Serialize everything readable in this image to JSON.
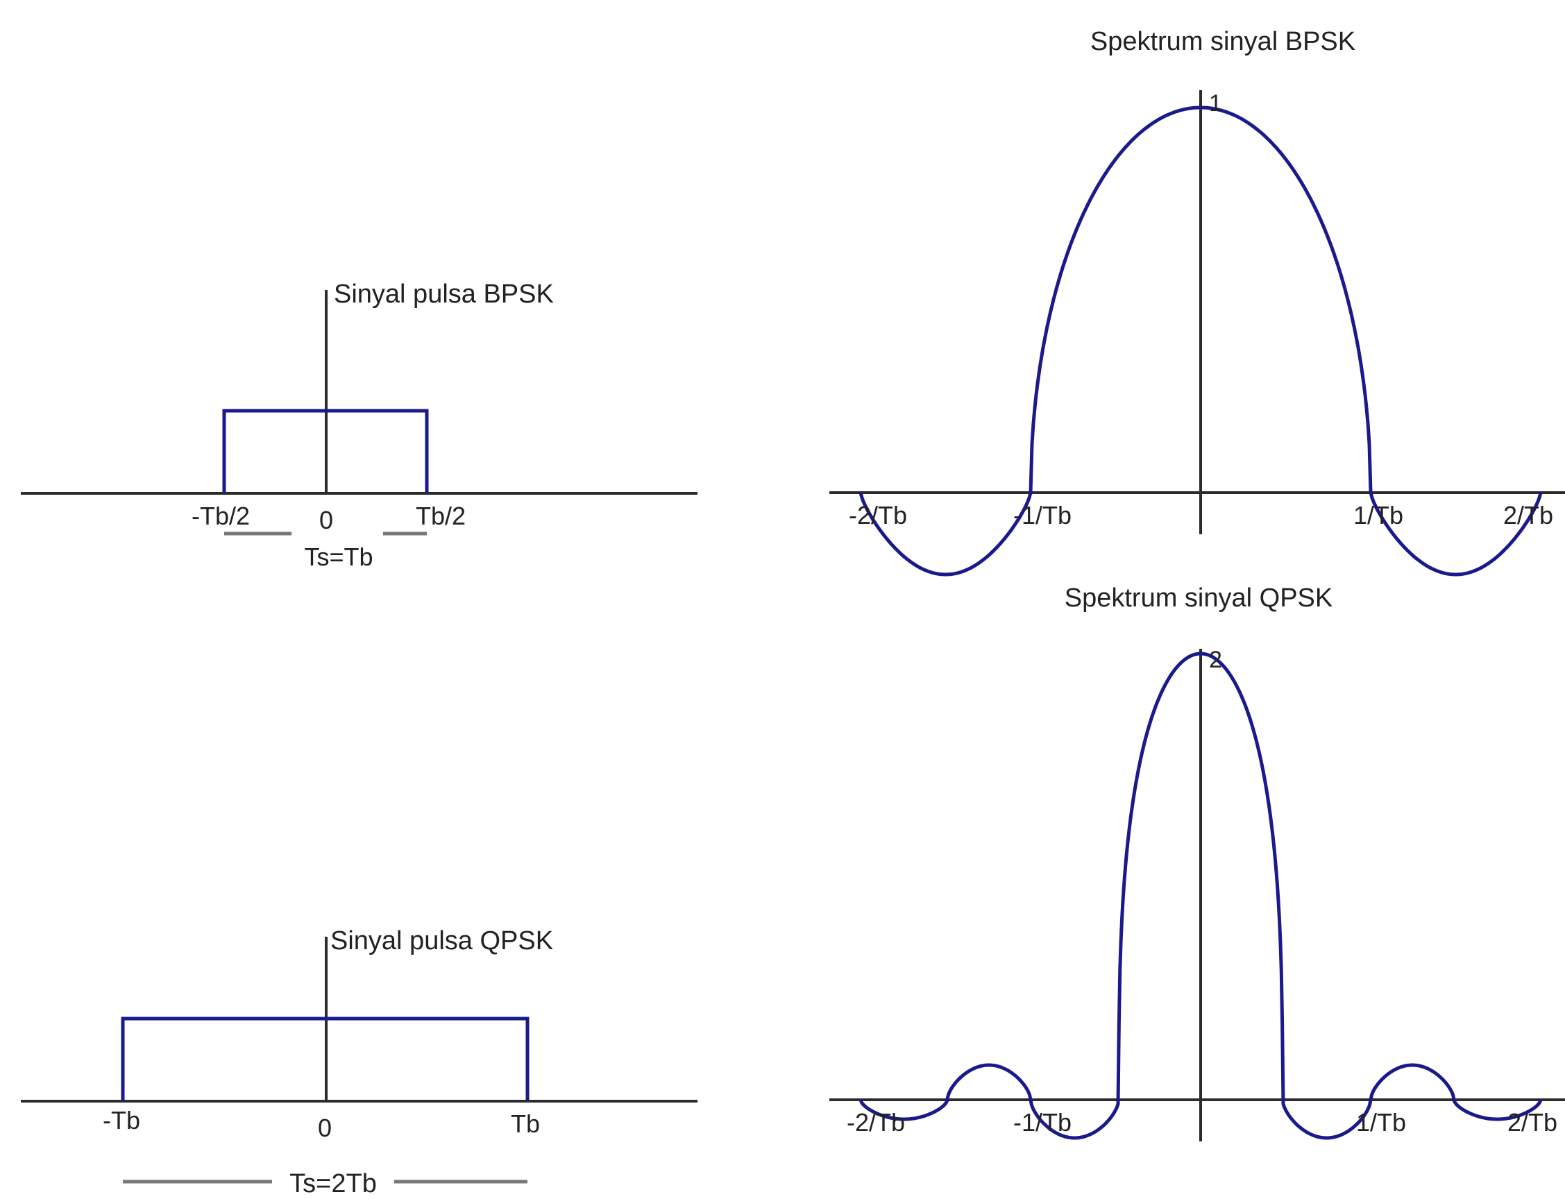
{
  "colors": {
    "signal": "#1a1a8c",
    "axis": "#2b2b2b",
    "bracket": "#777777",
    "background": "#ffffff"
  },
  "bpsk_pulse": {
    "label": "Sinyal pulsa BPSK",
    "ticks": [
      "-Tb/2",
      "0",
      "Tb/2"
    ],
    "duration_label": "Ts=Tb"
  },
  "qpsk_pulse": {
    "label": "Sinyal pulsa QPSK",
    "ticks": [
      "-Tb",
      "0",
      "Tb"
    ],
    "duration_label": "Ts=2Tb"
  },
  "bpsk_spectrum": {
    "title": "Spektrum sinyal BPSK",
    "peak_label": "1",
    "ticks": [
      "-2/Tb",
      "-1/Tb",
      "1/Tb",
      "2/Tb"
    ]
  },
  "qpsk_spectrum": {
    "title": "Spektrum sinyal QPSK",
    "peak_label": "2",
    "ticks": [
      "-2/Tb",
      "-1/Tb",
      "1/Tb",
      "2/Tb"
    ]
  }
}
